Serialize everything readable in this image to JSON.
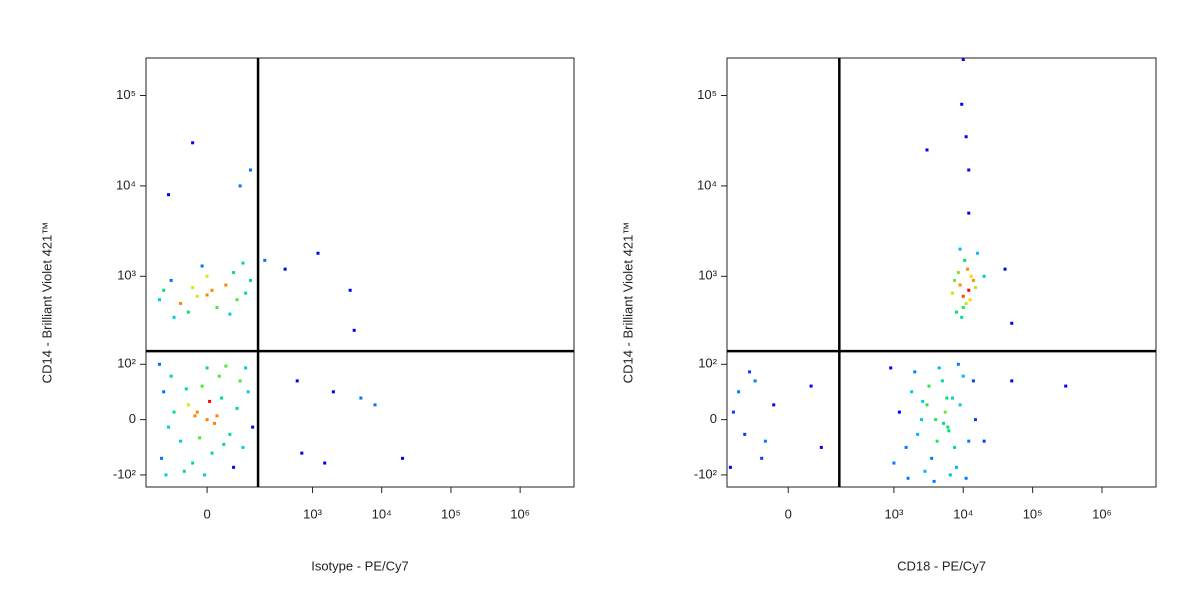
{
  "chart_data": [
    {
      "type": "scatter",
      "scale": "biexponential",
      "xlabel": "Isotype - PE/Cy7",
      "ylabel": "CD14 - Brilliant Violet 421™",
      "xlim": [
        -225,
        6000000
      ],
      "ylim": [
        -140,
        260000
      ],
      "xticks": [
        0,
        {
          "value": 1000,
          "label": "10³"
        },
        {
          "value": 10000,
          "label": "10⁴"
        },
        {
          "value": 100000,
          "label": "10⁵"
        },
        {
          "value": 1000000,
          "label": "10⁶"
        }
      ],
      "yticks": [
        {
          "value": -100,
          "label": "-10²"
        },
        0,
        {
          "value": 100,
          "label": "10²"
        },
        {
          "value": 1000,
          "label": "10³"
        },
        {
          "value": 10000,
          "label": "10⁴"
        },
        {
          "value": 100000,
          "label": "10⁵"
        }
      ],
      "gates": {
        "x": 158,
        "y": 144
      },
      "x": [
        -20,
        0,
        15,
        -40,
        30,
        -60,
        50,
        -10,
        10,
        -80,
        70,
        -30,
        25,
        -100,
        90,
        0,
        -5,
        -120,
        110,
        -50,
        60,
        -90,
        40,
        -130,
        5,
        -15,
        20,
        -25,
        35,
        -45,
        100,
        -110,
        130,
        -140,
        80,
        -20,
        10,
        -60,
        40,
        -90,
        70,
        0,
        -40,
        100,
        -120,
        20,
        -10,
        60,
        -80,
        120,
        -30,
        50,
        -140,
        90,
        0,
        -30,
        80,
        -100,
        120,
        200,
        400,
        1200,
        3500,
        4000,
        600,
        2000,
        5000,
        8000,
        700,
        20000,
        1500
      ],
      "y": [
        10,
        0,
        -5,
        20,
        30,
        -30,
        -20,
        50,
        -50,
        10,
        15,
        -70,
        70,
        -10,
        -40,
        90,
        -100,
        40,
        40,
        -90,
        -80,
        70,
        95,
        -60,
        25,
        -25,
        5,
        5,
        -35,
        45,
        90,
        -100,
        -10,
        100,
        60,
        600,
        700,
        500,
        800,
        900,
        550,
        1000,
        400,
        650,
        700,
        450,
        1300,
        1100,
        350,
        900,
        750,
        380,
        550,
        1400,
        620,
        30000,
        10000,
        8000,
        15000,
        1500,
        1200,
        1800,
        700,
        250,
        60,
        40,
        30,
        20,
        -50,
        -60,
        -70
      ]
    },
    {
      "type": "scatter",
      "scale": "biexponential",
      "xlabel": "CD18 - PE/Cy7",
      "ylabel": "CD14 - Brilliant Violet 421™",
      "xlim": [
        -225,
        6000000
      ],
      "ylim": [
        -140,
        260000
      ],
      "xticks": [
        0,
        {
          "value": 1000,
          "label": "10³"
        },
        {
          "value": 10000,
          "label": "10⁴"
        },
        {
          "value": 100000,
          "label": "10⁵"
        },
        {
          "value": 1000000,
          "label": "10⁶"
        }
      ],
      "yticks": [
        {
          "value": -100,
          "label": "-10²"
        },
        0,
        {
          "value": 100,
          "label": "10²"
        },
        {
          "value": 1000,
          "label": "10³"
        },
        {
          "value": 10000,
          "label": "10⁴"
        },
        {
          "value": 100000,
          "label": "10⁵"
        }
      ],
      "gates": {
        "x": 158,
        "y": 144
      },
      "x": [
        2500,
        3000,
        2200,
        5500,
        6000,
        7000,
        4000,
        1800,
        1500,
        9000,
        12000,
        3500,
        5000,
        8000,
        2000,
        1200,
        10000,
        6500,
        2800,
        4500,
        15000,
        1000,
        3200,
        7500,
        5800,
        2600,
        6200,
        4200,
        11000,
        900,
        14000,
        1600,
        8500,
        3800,
        5200,
        10000,
        9000,
        11000,
        12000,
        8000,
        13000,
        10500,
        9500,
        14000,
        7000,
        11500,
        10000,
        12500,
        8500,
        15000,
        9000,
        16000,
        7500,
        -150,
        -120,
        -80,
        -50,
        -200,
        -30,
        -100,
        -60,
        80,
        50,
        -180,
        10000,
        9500,
        12000,
        11000,
        3000,
        12000,
        20000,
        40000,
        50000,
        300000,
        50000,
        20000
      ],
      "y": [
        0,
        20,
        -20,
        10,
        -10,
        30,
        0,
        40,
        -40,
        20,
        -30,
        -60,
        60,
        -80,
        80,
        10,
        70,
        -100,
        -90,
        90,
        0,
        -70,
        50,
        -40,
        30,
        25,
        -15,
        -30,
        -110,
        90,
        60,
        -110,
        100,
        -120,
        -5,
        600,
        800,
        500,
        700,
        400,
        1000,
        1500,
        350,
        900,
        650,
        1200,
        450,
        550,
        1100,
        750,
        2000,
        1800,
        900,
        40,
        -20,
        60,
        -30,
        -80,
        20,
        80,
        -60,
        -40,
        50,
        10,
        250000,
        80000,
        15000,
        35000,
        25000,
        5000,
        1000,
        1200,
        300,
        50,
        60,
        -30
      ]
    }
  ]
}
